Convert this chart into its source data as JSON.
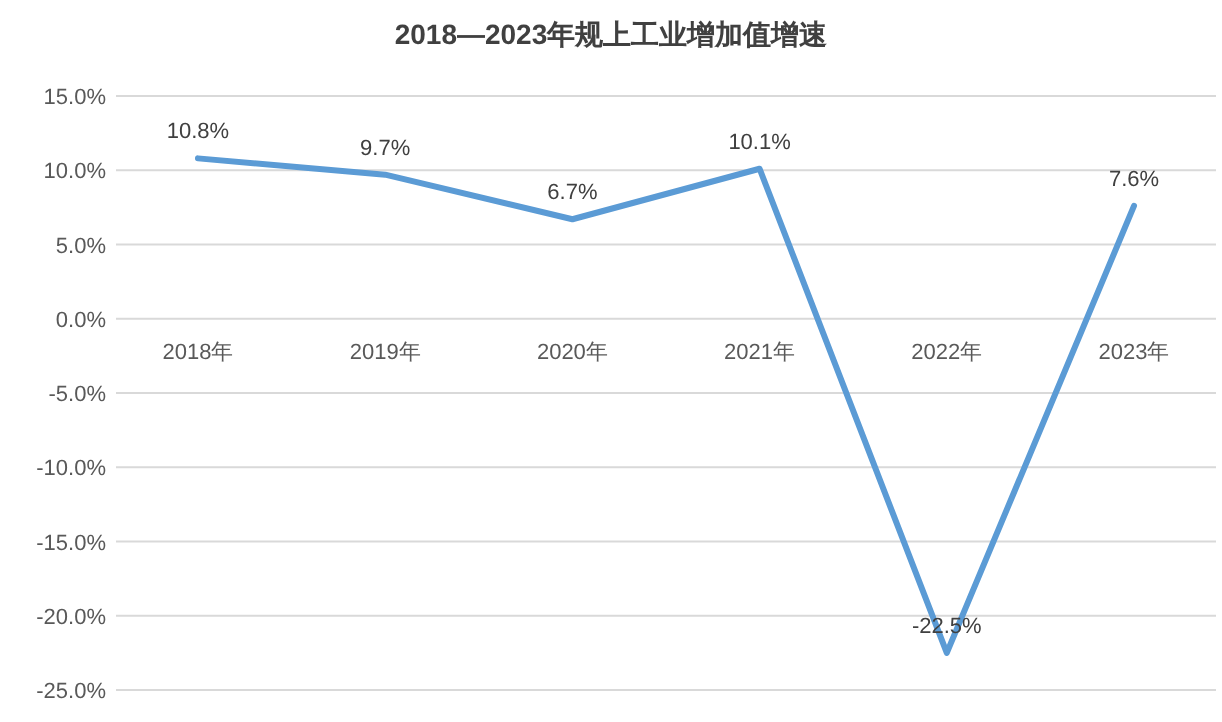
{
  "chart_data": {
    "type": "line",
    "title": "2018—2023年规上工业增加值增速",
    "categories": [
      "2018年",
      "2019年",
      "2020年",
      "2021年",
      "2022年",
      "2023年"
    ],
    "values": [
      10.8,
      9.7,
      6.7,
      10.1,
      -22.5,
      7.6
    ],
    "value_labels": [
      "10.8%",
      "9.7%",
      "6.7%",
      "10.1%",
      "-22.5%",
      "7.6%"
    ],
    "color": "#5b9bd5",
    "ylim": [
      -25,
      15
    ],
    "yticks": [
      {
        "value": 15,
        "label": "15.0%"
      },
      {
        "value": 10,
        "label": "10.0%"
      },
      {
        "value": 5,
        "label": "5.0%"
      },
      {
        "value": 0,
        "label": "0.0%"
      },
      {
        "value": -5,
        "label": "-5.0%"
      },
      {
        "value": -10,
        "label": "-10.0%"
      },
      {
        "value": -15,
        "label": "-15.0%"
      },
      {
        "value": -20,
        "label": "-20.0%"
      },
      {
        "value": -25,
        "label": "-25.0%"
      }
    ],
    "grid": "y"
  }
}
